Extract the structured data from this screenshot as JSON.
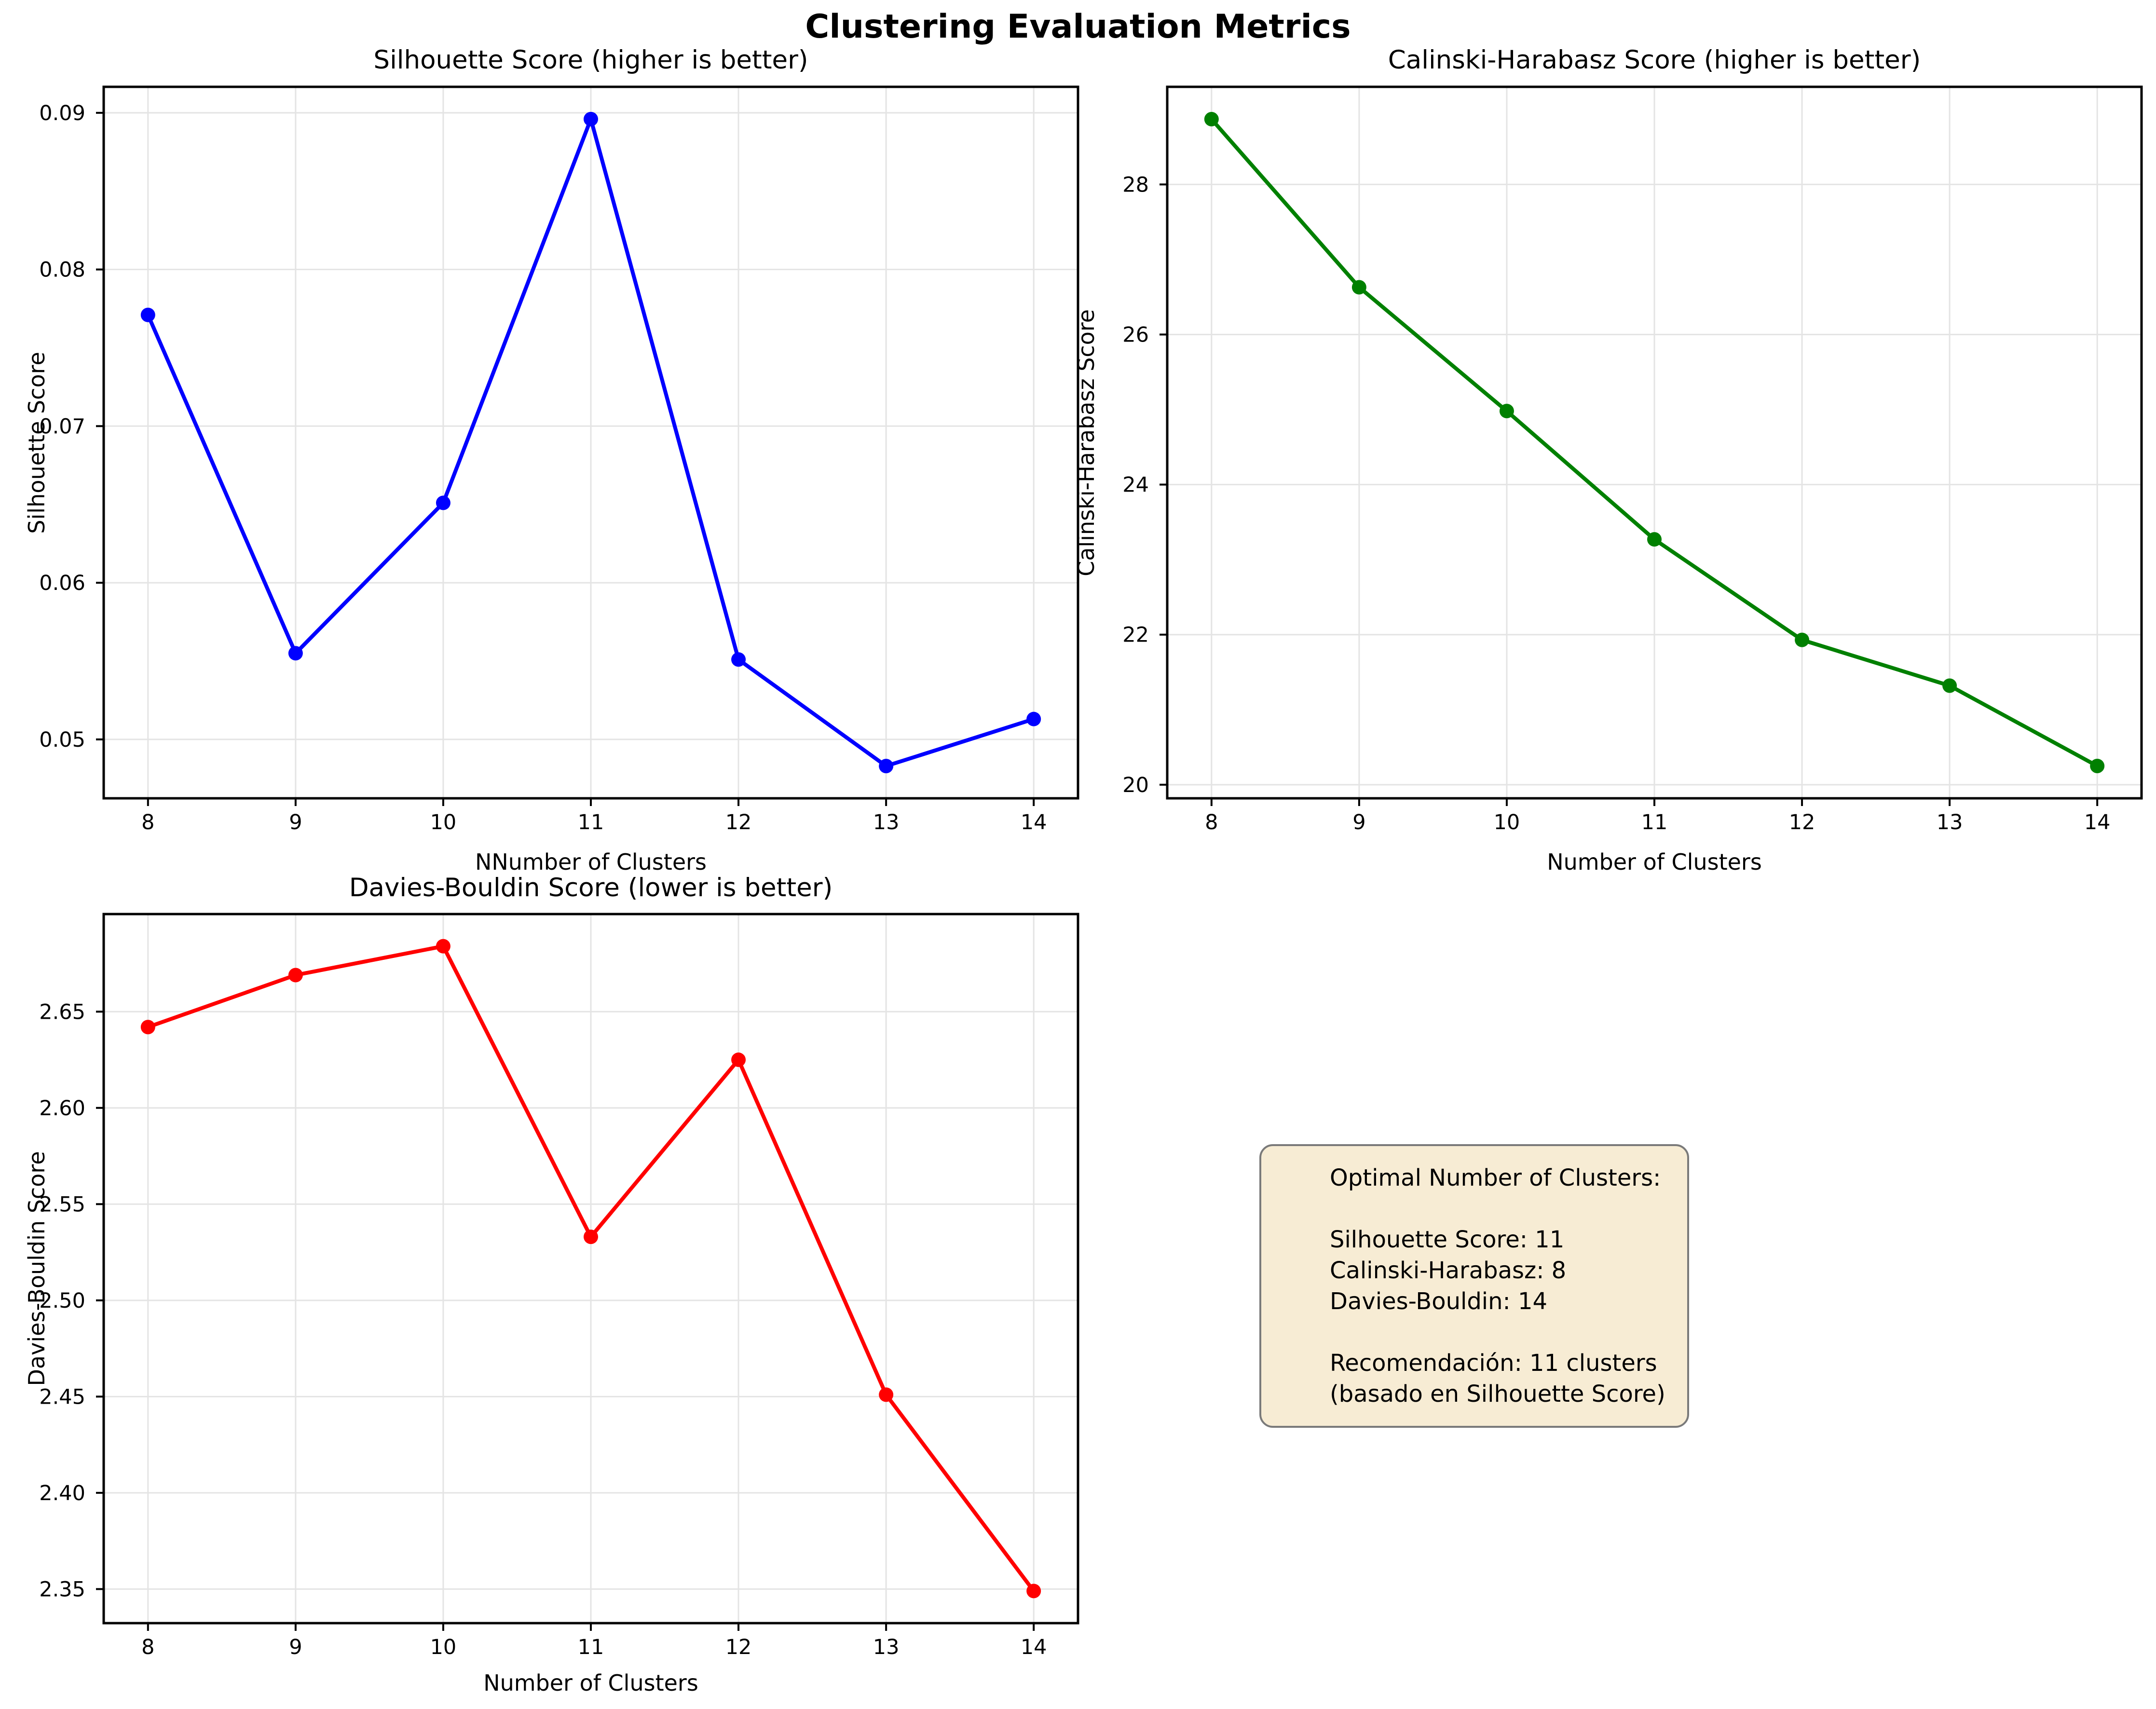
{
  "suptitle": "Clustering Evaluation Metrics",
  "colors": {
    "silhouette_line": "#0000ff",
    "calinski_line": "#008000",
    "davies_line": "#ff0000",
    "grid": "#e4e4e4",
    "spine": "#000000",
    "info_box_bg": "#f7ecd4",
    "info_box_border": "#7a7a7a"
  },
  "chart_data": [
    {
      "type": "line",
      "title": "Silhouette Score (higher is better)",
      "xlabel": "NNumber of Clusters",
      "ylabel": "Silhouette Score",
      "line_color": "#0000ff",
      "x": [
        8,
        9,
        10,
        11,
        12,
        13,
        14
      ],
      "y": [
        0.0771,
        0.0555,
        0.0651,
        0.0896,
        0.0551,
        0.0483,
        0.0513
      ],
      "xlim": [
        7.7,
        14.3
      ],
      "ylim": [
        0.04624,
        0.09166
      ],
      "xticks": {
        "values": [
          8,
          9,
          10,
          11,
          12,
          13,
          14
        ],
        "labels": [
          "8",
          "9",
          "10",
          "11",
          "12",
          "13",
          "14"
        ]
      },
      "yticks": {
        "values": [
          0.05,
          0.06,
          0.07,
          0.08,
          0.09
        ],
        "labels": [
          "0.05",
          "0.06",
          "0.07",
          "0.08",
          "0.09"
        ]
      },
      "grid": true
    },
    {
      "type": "line",
      "title": "Calinski-Harabasz Score (higher is better)",
      "xlabel": "Number of Clusters",
      "ylabel": "Calinski-Harabasz Score",
      "line_color": "#008000",
      "x": [
        8,
        9,
        10,
        11,
        12,
        13,
        14
      ],
      "y": [
        28.87,
        26.63,
        24.98,
        23.27,
        21.93,
        21.32,
        20.25
      ],
      "xlim": [
        7.7,
        14.3
      ],
      "ylim": [
        19.819,
        29.301
      ],
      "xticks": {
        "values": [
          8,
          9,
          10,
          11,
          12,
          13,
          14
        ],
        "labels": [
          "8",
          "9",
          "10",
          "11",
          "12",
          "13",
          "14"
        ]
      },
      "yticks": {
        "values": [
          20,
          22,
          24,
          26,
          28
        ],
        "labels": [
          "20",
          "22",
          "24",
          "26",
          "28"
        ]
      },
      "grid": true
    },
    {
      "type": "line",
      "title": "Davies-Bouldin Score (lower is better)",
      "xlabel": "Number of Clusters",
      "ylabel": "Davies-Bouldin Score",
      "line_color": "#ff0000",
      "x": [
        8,
        9,
        10,
        11,
        12,
        13,
        14
      ],
      "y": [
        2.642,
        2.669,
        2.684,
        2.533,
        2.625,
        2.451,
        2.349
      ],
      "xlim": [
        7.7,
        14.3
      ],
      "ylim": [
        2.3323,
        2.7007
      ],
      "xticks": {
        "values": [
          8,
          9,
          10,
          11,
          12,
          13,
          14
        ],
        "labels": [
          "8",
          "9",
          "10",
          "11",
          "12",
          "13",
          "14"
        ]
      },
      "yticks": {
        "values": [
          2.35,
          2.4,
          2.45,
          2.5,
          2.55,
          2.6,
          2.65
        ],
        "labels": [
          "2.35",
          "2.40",
          "2.45",
          "2.50",
          "2.55",
          "2.60",
          "2.65"
        ]
      },
      "grid": true
    }
  ],
  "info_box": {
    "lines": [
      "Optimal Number of Clusters:",
      "",
      "Silhouette Score: 11",
      "Calinski-Harabasz: 8",
      "Davies-Bouldin: 14",
      "",
      "Recomendación: 11 clusters",
      "(basado en Silhouette Score)"
    ]
  }
}
